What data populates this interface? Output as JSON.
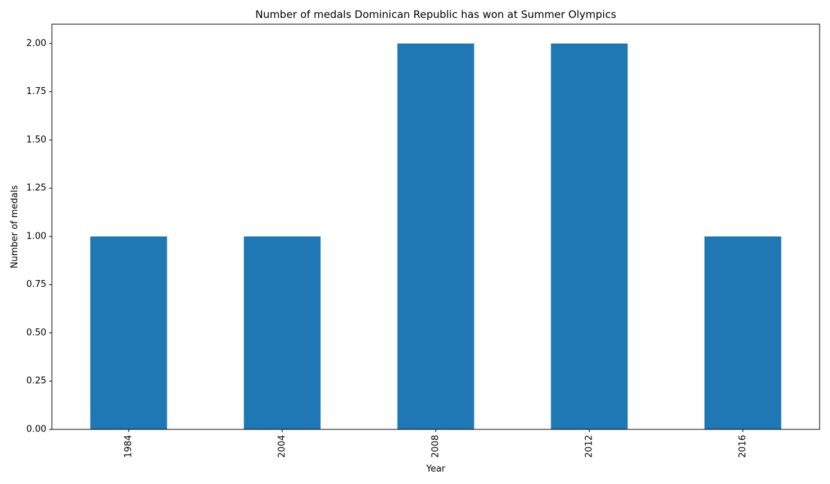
{
  "chart_data": {
    "type": "bar",
    "title": "Number of medals Dominican Republic has won at Summer Olympics",
    "xlabel": "Year",
    "ylabel": "Number of medals",
    "categories": [
      "1984",
      "2004",
      "2008",
      "2012",
      "2016"
    ],
    "values": [
      1,
      1,
      2,
      2,
      1
    ],
    "ylim": [
      0,
      2.1
    ],
    "yticks": [
      "0.00",
      "0.25",
      "0.50",
      "0.75",
      "1.00",
      "1.25",
      "1.50",
      "1.75",
      "2.00"
    ],
    "ytick_values": [
      0,
      0.25,
      0.5,
      0.75,
      1,
      1.25,
      1.5,
      1.75,
      2
    ],
    "bar_color": "#1f77b4",
    "grid": false,
    "legend": "none",
    "xtick_rotation": "vertical"
  }
}
